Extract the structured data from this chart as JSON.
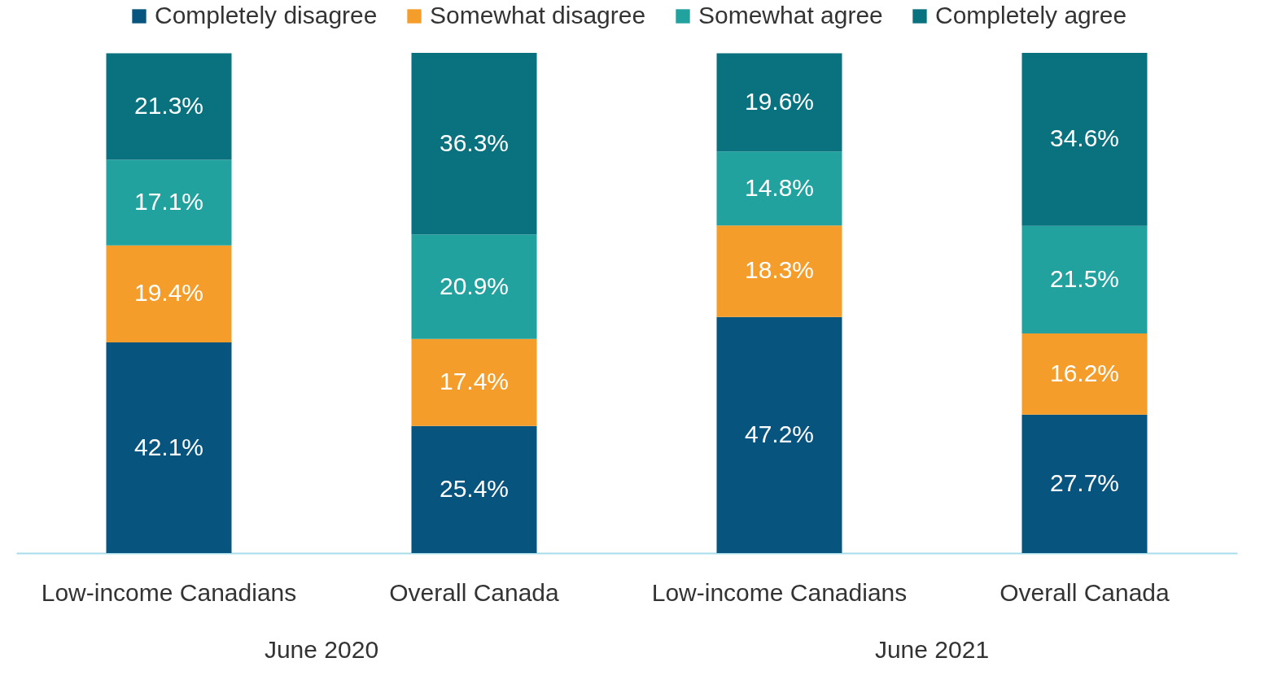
{
  "chart_data": {
    "type": "bar",
    "stacked": true,
    "legend": "top",
    "categories": [
      "Low-income Canadians",
      "Overall Canada",
      "Low-income Canadians",
      "Overall Canada"
    ],
    "annotations": [
      "June 2020",
      "June 2021"
    ],
    "series": [
      {
        "name": "Completely disagree",
        "color": "#07547f",
        "values": [
          42.1,
          25.4,
          47.2,
          27.7
        ],
        "value_labels": [
          "42.1%",
          "25.4%",
          "47.2%",
          "27.7%"
        ]
      },
      {
        "name": "Somewhat disagree",
        "color": "#f59d2a",
        "values": [
          19.4,
          17.4,
          18.3,
          16.2
        ],
        "value_labels": [
          "19.4%",
          "17.4%",
          "18.3%",
          "16.2%"
        ]
      },
      {
        "name": "Somewhat agree",
        "color": "#21a29f",
        "values": [
          17.1,
          20.9,
          14.8,
          21.5
        ],
        "value_labels": [
          "17.1%",
          "20.9%",
          "14.8%",
          "21.5%"
        ]
      },
      {
        "name": "Completely agree",
        "color": "#0a727f",
        "values": [
          21.3,
          36.3,
          19.6,
          34.6
        ],
        "value_labels": [
          "21.3%",
          "36.3%",
          "19.6%",
          "34.6%"
        ]
      }
    ]
  }
}
